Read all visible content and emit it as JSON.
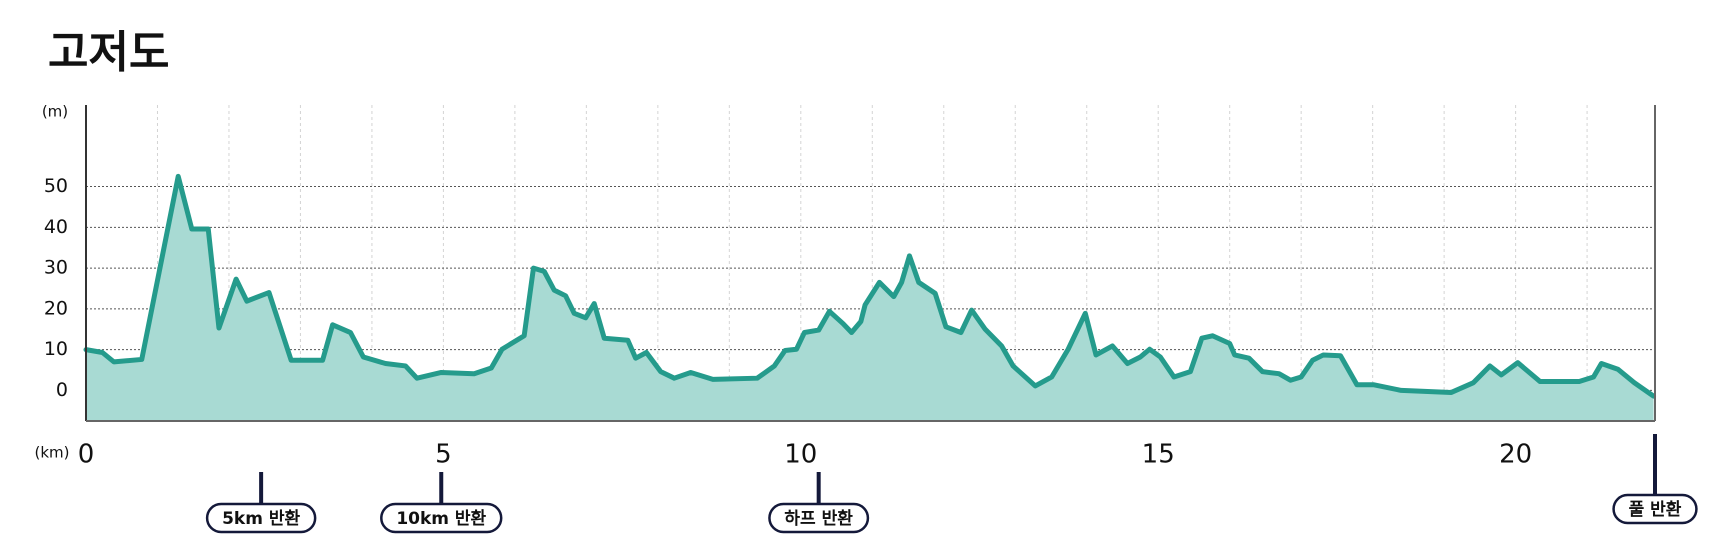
{
  "chart_data": {
    "type": "area",
    "title": "고저도",
    "y_label": "(m)",
    "x_label": "(km)",
    "xlim": [
      0,
      21.95
    ],
    "ylim": [
      -7.5,
      70
    ],
    "xticks": [
      0,
      5,
      10,
      15,
      20
    ],
    "xminor_ticks": [
      1,
      2,
      3,
      4,
      6,
      7,
      8,
      9,
      11,
      12,
      13,
      14,
      16,
      17,
      18,
      19,
      21
    ],
    "yticks": [
      0,
      10,
      20,
      30,
      40,
      50
    ],
    "grid": true,
    "line_color": "#259b8c",
    "fill_color": "#a8dad3",
    "x": [
      0,
      0.23,
      0.39,
      0.78,
      1.29,
      1.48,
      1.71,
      1.86,
      2.1,
      2.25,
      2.56,
      2.87,
      3.31,
      3.45,
      3.7,
      3.88,
      4.19,
      4.47,
      4.63,
      4.97,
      5.43,
      5.67,
      5.82,
      6.13,
      6.26,
      6.41,
      6.55,
      6.71,
      6.83,
      6.99,
      7.11,
      7.25,
      7.58,
      7.69,
      7.84,
      8.04,
      8.23,
      8.46,
      8.77,
      9.39,
      9.63,
      9.78,
      9.94,
      10.05,
      10.25,
      10.4,
      10.59,
      10.71,
      10.84,
      10.9,
      11.1,
      11.3,
      11.41,
      11.52,
      11.65,
      11.88,
      12.03,
      12.24,
      12.39,
      12.58,
      12.81,
      12.97,
      13.28,
      13.51,
      13.74,
      13.98,
      14.13,
      14.36,
      14.57,
      14.75,
      14.88,
      15.03,
      15.22,
      15.45,
      15.61,
      15.76,
      16,
      16.07,
      16.27,
      16.46,
      16.69,
      16.85,
      17,
      17.16,
      17.31,
      17.55,
      17.78,
      18.01,
      18.4,
      19.1,
      19.41,
      19.64,
      19.8,
      20.03,
      20.34,
      20.89,
      21.09,
      21.2,
      21.43,
      21.66,
      21.93
    ],
    "values": [
      10,
      9.3,
      7,
      7.6,
      52.5,
      39.6,
      39.6,
      15.3,
      27.3,
      21.9,
      24,
      7.4,
      7.4,
      16.1,
      14.2,
      8.2,
      6.6,
      6,
      3,
      4.4,
      4.1,
      5.5,
      10.1,
      13.4,
      30,
      29.2,
      24.6,
      23.2,
      18.9,
      17.8,
      21.3,
      12.8,
      12.3,
      7.9,
      9.3,
      4.6,
      3,
      4.4,
      2.7,
      3,
      6,
      9.8,
      10.1,
      14.2,
      14.8,
      19.4,
      16.4,
      14.2,
      16.9,
      21,
      26.5,
      23,
      26.5,
      33,
      26.5,
      23.8,
      15.6,
      14.2,
      19.7,
      15,
      10.9,
      6,
      1.1,
      3.3,
      10.1,
      18.9,
      8.7,
      10.9,
      6.6,
      8.2,
      10.1,
      8.2,
      3.3,
      4.6,
      12.8,
      13.4,
      11.5,
      8.7,
      7.9,
      4.6,
      4.1,
      2.5,
      3.3,
      7.4,
      8.7,
      8.5,
      1.4,
      1.4,
      0,
      -0.5,
      1.9,
      6,
      3.8,
      6.8,
      2.2,
      2.2,
      3.3,
      6.6,
      5.2,
      1.9,
      -1.4
    ],
    "markers": [
      {
        "x": 2.45,
        "label": "5km 반환"
      },
      {
        "x": 4.97,
        "label": "10km 반환"
      },
      {
        "x": 10.25,
        "label": "하프 반환"
      },
      {
        "x": 21.95,
        "label": "풀 반환"
      }
    ]
  }
}
